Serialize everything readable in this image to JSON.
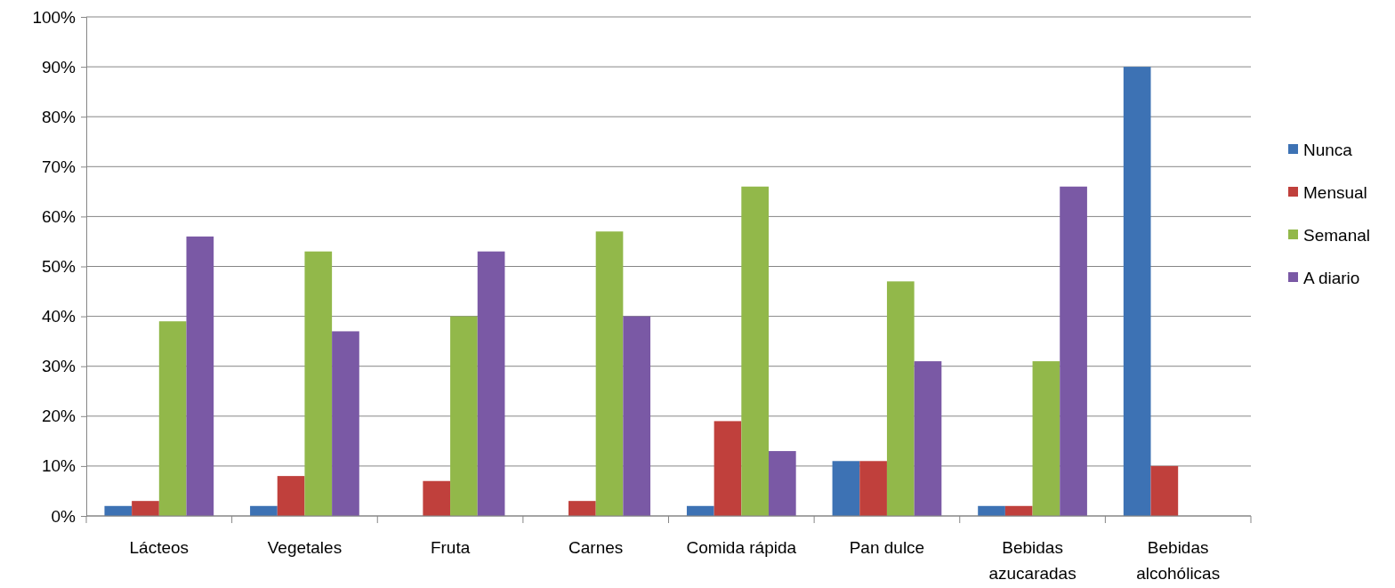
{
  "chart_data": {
    "type": "bar",
    "categories": [
      "Lácteos",
      "Vegetales",
      "Fruta",
      "Carnes",
      "Comida rápida",
      "Pan dulce",
      "Bebidas azucaradas",
      "Bebidas alcohólicas"
    ],
    "series": [
      {
        "name": "Nunca",
        "color": "#3d72b4",
        "values": [
          2,
          2,
          0,
          0,
          2,
          11,
          2,
          90
        ]
      },
      {
        "name": "Mensual",
        "color": "#c0403c",
        "values": [
          3,
          8,
          7,
          3,
          19,
          11,
          2,
          10
        ]
      },
      {
        "name": "Semanal",
        "color": "#92b84a",
        "values": [
          39,
          53,
          40,
          57,
          66,
          47,
          31,
          0
        ]
      },
      {
        "name": "A diario",
        "color": "#7a59a5",
        "values": [
          56,
          37,
          53,
          40,
          13,
          31,
          66,
          0
        ]
      }
    ],
    "ylim": [
      0,
      100
    ],
    "yticks": [
      {
        "value": 0,
        "label": "0%"
      },
      {
        "value": 10,
        "label": "10%"
      },
      {
        "value": 20,
        "label": "20%"
      },
      {
        "value": 30,
        "label": "30%"
      },
      {
        "value": 40,
        "label": "40%"
      },
      {
        "value": 50,
        "label": "50%"
      },
      {
        "value": 60,
        "label": "60%"
      },
      {
        "value": 70,
        "label": "70%"
      },
      {
        "value": 80,
        "label": "80%"
      },
      {
        "value": 90,
        "label": "90%"
      },
      {
        "value": 100,
        "label": "100%"
      }
    ],
    "grid": "y",
    "legend": "right"
  }
}
